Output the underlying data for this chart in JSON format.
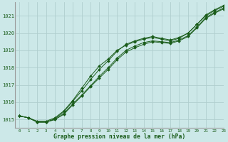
{
  "title": "Graphe pression niveau de la mer (hPa)",
  "bg_color": "#cce8e8",
  "plot_bg_color": "#cce8e8",
  "grid_color": "#b0cece",
  "line_color": "#1a5c1a",
  "marker_color": "#1a5c1a",
  "text_color": "#1a5c1a",
  "xlim": [
    -0.5,
    23
  ],
  "ylim": [
    1014.5,
    1021.8
  ],
  "yticks": [
    1015,
    1016,
    1017,
    1018,
    1019,
    1020,
    1021
  ],
  "xticks": [
    0,
    1,
    2,
    3,
    4,
    5,
    6,
    7,
    8,
    9,
    10,
    11,
    12,
    13,
    14,
    15,
    16,
    17,
    18,
    19,
    20,
    21,
    22,
    23
  ],
  "series": [
    [
      1015.2,
      1015.1,
      1014.9,
      1014.9,
      1015.1,
      1015.5,
      1016.1,
      1016.8,
      1017.5,
      1018.1,
      1018.5,
      1019.0,
      1019.3,
      1019.5,
      1019.65,
      1019.75,
      1019.65,
      1019.55,
      1019.7,
      1020.0,
      1020.5,
      1021.0,
      1021.3,
      1021.55
    ],
    [
      1015.2,
      1015.1,
      1014.85,
      1014.85,
      1015.0,
      1015.3,
      1015.85,
      1016.35,
      1016.9,
      1017.4,
      1017.9,
      1018.45,
      1018.9,
      1019.15,
      1019.35,
      1019.5,
      1019.45,
      1019.4,
      1019.55,
      1019.8,
      1020.3,
      1020.85,
      1021.15,
      1021.4
    ],
    [
      1015.2,
      1015.1,
      1014.85,
      1014.85,
      1015.0,
      1015.35,
      1015.9,
      1016.4,
      1016.95,
      1017.5,
      1018.0,
      1018.55,
      1019.0,
      1019.25,
      1019.45,
      1019.55,
      1019.5,
      1019.45,
      1019.6,
      1019.85,
      1020.35,
      1020.9,
      1021.2,
      1021.45
    ],
    [
      1015.2,
      1015.1,
      1014.85,
      1014.85,
      1015.05,
      1015.45,
      1016.05,
      1016.65,
      1017.3,
      1017.9,
      1018.4,
      1018.95,
      1019.35,
      1019.55,
      1019.7,
      1019.8,
      1019.7,
      1019.6,
      1019.75,
      1020.0,
      1020.5,
      1021.05,
      1021.35,
      1021.6
    ]
  ]
}
